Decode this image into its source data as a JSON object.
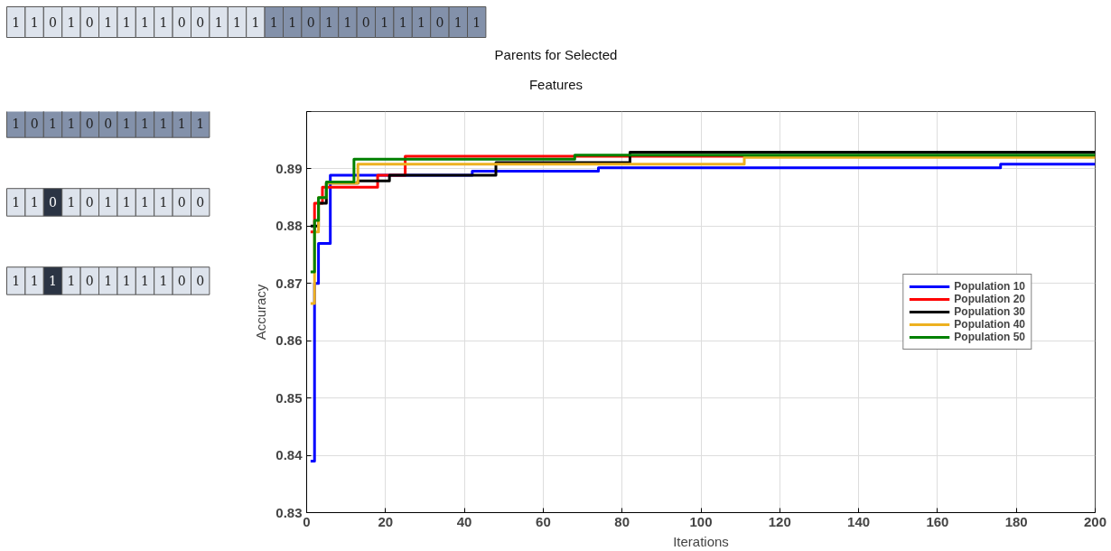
{
  "chart_data": {
    "type": "step",
    "title": "Parents for Selected Features",
    "xlabel": "Iterations",
    "ylabel": "Accuracy",
    "xlim": [
      0,
      200
    ],
    "xticks": [
      0,
      20,
      40,
      60,
      80,
      100,
      120,
      140,
      160,
      180,
      200
    ],
    "ylim": [
      0.83,
      0.9
    ],
    "yticks": [
      0.83,
      0.84,
      0.85,
      0.86,
      0.87,
      0.88,
      0.89,
      {
        "value": 0.9,
        "label": null
      }
    ],
    "grid": true,
    "legend": "right",
    "annotations": [
      "1 1 0 1 0 1 1 1 1 0 0 1 1 1 1 1 0 1 1 0 1 1 1 0 1 1",
      "1 0 1 1 0 0 1 1 1 1 1",
      "1 1 0 1 0 1 1 1 1 0 0",
      "1 1 1 1 0 1 1 1 1 0 0"
    ],
    "series": [
      {
        "name": "Population 10",
        "color": "#0000ff",
        "x": [
          1,
          2,
          3,
          6,
          42,
          74,
          176,
          200
        ],
        "values": [
          0.839,
          0.87,
          0.877,
          0.8889,
          0.8896,
          0.8902,
          0.8908,
          0.8908
        ]
      },
      {
        "name": "Population 20",
        "color": "#ff0000",
        "x": [
          1,
          2,
          4,
          18,
          25,
          200
        ],
        "values": [
          0.879,
          0.884,
          0.8868,
          0.8889,
          0.8922,
          0.8922
        ]
      },
      {
        "name": "Population 30",
        "color": "#000000",
        "x": [
          1,
          3,
          5,
          13,
          21,
          48,
          82,
          200
        ],
        "values": [
          0.88,
          0.884,
          0.8875,
          0.8879,
          0.8889,
          0.8911,
          0.8929,
          0.8929
        ]
      },
      {
        "name": "Population 40",
        "color": "#edb120",
        "x": [
          1,
          2,
          3,
          5,
          13,
          111,
          200
        ],
        "values": [
          0.8665,
          0.879,
          0.885,
          0.8875,
          0.8908,
          0.892,
          0.892
        ]
      },
      {
        "name": "Population 50",
        "color": "#008000",
        "x": [
          1,
          2,
          3,
          5,
          12,
          68,
          200
        ],
        "values": [
          0.872,
          0.881,
          0.885,
          0.8877,
          0.8917,
          0.8924,
          0.8924
        ]
      }
    ]
  }
}
